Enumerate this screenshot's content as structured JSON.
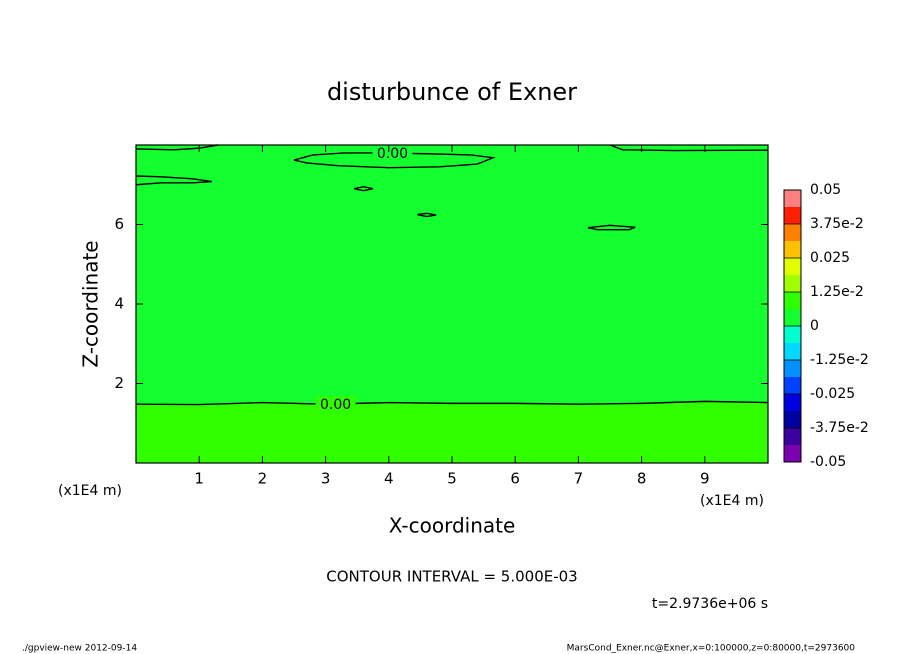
{
  "chart_data": {
    "type": "contour",
    "title": "disturbunce of Exner",
    "xlabel": "X-coordinate",
    "ylabel": "Z-coordinate",
    "x_unit_left": "(x1E4 m)",
    "x_unit_right": "(x1E4 m)",
    "note": "CONTOUR INTERVAL = 5.000E-03",
    "time": "t=2.9736e+06 s",
    "footer_left": "./gpview-new  2012-09-14",
    "footer_right": "MarsCond_Exner.nc@Exner,x=0:100000,z=0:80000,t=2973600",
    "xlim": [
      0,
      10
    ],
    "ylim": [
      0,
      8
    ],
    "xticks": [
      1,
      2,
      3,
      4,
      5,
      6,
      7,
      8,
      9
    ],
    "yticks": [
      2,
      4,
      6
    ],
    "background_fill": "#14ff30",
    "line_color": "#000000",
    "contours": [
      {
        "label": "0.00",
        "fill_below": "#30ff00",
        "x": [
          0,
          1,
          2,
          3,
          4,
          5,
          6,
          7,
          8,
          9,
          10
        ],
        "y": [
          1.48,
          1.47,
          1.52,
          1.48,
          1.52,
          1.5,
          1.5,
          1.48,
          1.5,
          1.55,
          1.52
        ]
      },
      {
        "label": "0.00",
        "x": [
          2.5,
          2.8,
          3.3,
          3.9,
          4.6,
          5.3,
          5.65,
          5.4,
          4.8,
          4.0,
          3.2,
          2.7,
          2.5
        ],
        "y": [
          7.62,
          7.75,
          7.8,
          7.8,
          7.78,
          7.75,
          7.68,
          7.52,
          7.45,
          7.43,
          7.48,
          7.55,
          7.62
        ]
      },
      {
        "x": [
          0,
          0.6,
          1.0,
          1.3
        ],
        "y": [
          7.9,
          7.88,
          7.92,
          8.0
        ]
      },
      {
        "x": [
          7.5,
          7.7,
          8.5,
          10
        ],
        "y": [
          8.0,
          7.88,
          7.86,
          7.87
        ]
      },
      {
        "x": [
          0,
          0.4,
          0.9,
          1.2,
          0.9,
          0.4,
          0
        ],
        "y": [
          7.22,
          7.2,
          7.15,
          7.08,
          7.05,
          7.05,
          7.0
        ]
      },
      {
        "x": [
          3.45,
          3.6,
          3.75,
          3.6,
          3.45
        ],
        "y": [
          6.9,
          6.95,
          6.9,
          6.85,
          6.9
        ]
      },
      {
        "x": [
          4.45,
          4.6,
          4.75,
          4.6,
          4.45
        ],
        "y": [
          6.25,
          6.28,
          6.24,
          6.2,
          6.25
        ]
      },
      {
        "x": [
          7.15,
          7.5,
          7.9,
          7.8,
          7.3,
          7.15
        ],
        "y": [
          5.92,
          5.98,
          5.93,
          5.87,
          5.87,
          5.92
        ]
      }
    ],
    "colorbar": {
      "levels": [
        -0.05,
        -0.04375,
        -0.0375,
        -0.03125,
        -0.025,
        -0.01875,
        -0.0125,
        -0.00625,
        0,
        0.00625,
        0.0125,
        0.01875,
        0.025,
        0.03125,
        0.0375,
        0.04375,
        0.05
      ],
      "colors": [
        "#7a00b0",
        "#3c00a0",
        "#0000a0",
        "#0000e0",
        "#0040ff",
        "#0090ff",
        "#00d8ff",
        "#00ffd0",
        "#14ff30",
        "#30ff00",
        "#a0ff00",
        "#e0ff00",
        "#ffc000",
        "#ff8000",
        "#ff2000",
        "#ff8080"
      ],
      "ticks": [
        -0.05,
        {
          "value": -0.0375,
          "label": "-3.75e-2"
        },
        -0.025,
        {
          "value": -0.0125,
          "label": "-1.25e-2"
        },
        0,
        {
          "value": 0.0125,
          "label": "1.25e-2"
        },
        0.025,
        {
          "value": 0.0375,
          "label": "3.75e-2"
        },
        0.05
      ]
    }
  }
}
